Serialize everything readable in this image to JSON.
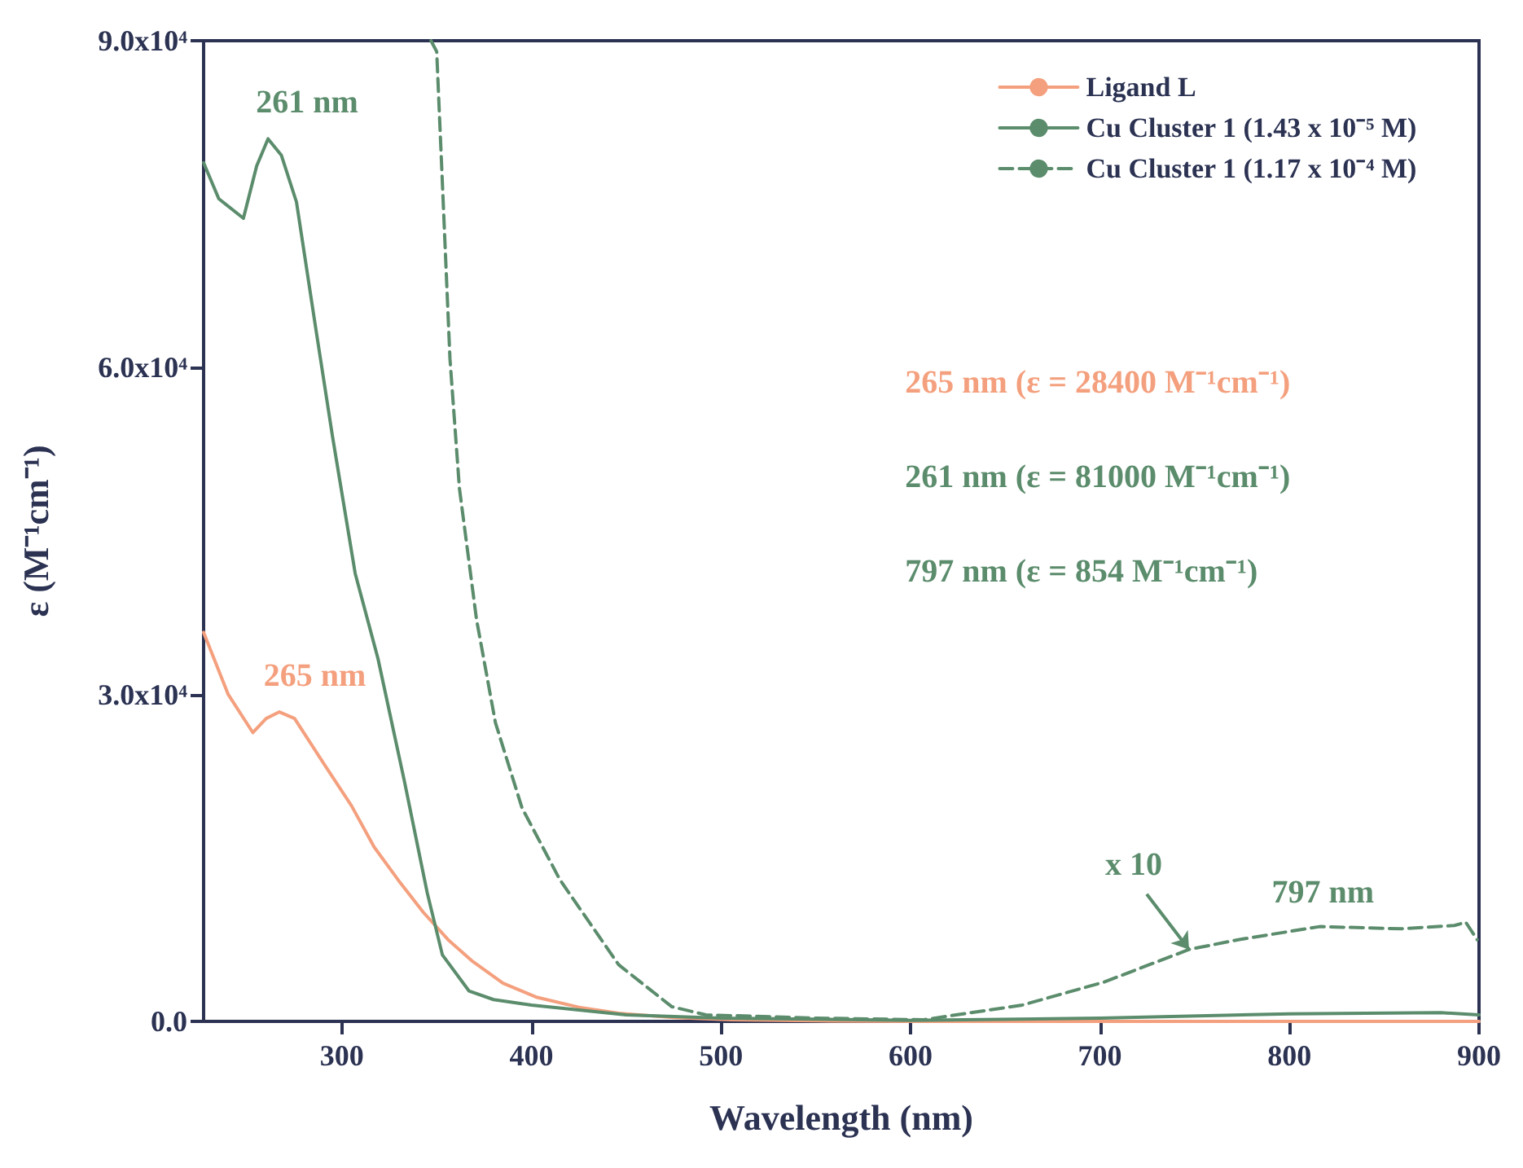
{
  "chart_data": {
    "type": "line",
    "xlabel": "Wavelength (nm)",
    "ylabel": "ε (M⁻¹cm⁻¹)",
    "xlim": [
      227,
      900
    ],
    "xticks": [
      300,
      400,
      500,
      600,
      700,
      800,
      900
    ],
    "ylim": [
      0,
      90000
    ],
    "yticks": [
      {
        "value": 0,
        "label": "0.0"
      },
      {
        "value": 30000,
        "label": "3.0x10⁴"
      },
      {
        "value": 60000,
        "label": "6.0x10⁴"
      },
      {
        "value": 90000,
        "label": "9.0x10⁴"
      }
    ],
    "legend": "top right",
    "grid": false,
    "marker": "none",
    "series": [
      {
        "name": "Ligand L",
        "color": "#f4a07e",
        "line_style": "solid",
        "x": [
          227,
          240,
          253,
          260,
          267,
          275,
          291,
          305,
          317,
          330,
          343,
          356,
          369,
          385,
          403,
          425,
          446,
          475,
          506,
          550,
          600,
          700,
          800,
          900
        ],
        "values": [
          35700,
          30000,
          26500,
          27800,
          28400,
          27800,
          23500,
          19800,
          16000,
          12900,
          10000,
          7500,
          5500,
          3500,
          2200,
          1300,
          750,
          350,
          150,
          50,
          0,
          0,
          0,
          0
        ]
      },
      {
        "name": "Cu Cluster 1 (1.43 x 10⁻⁵ M)",
        "color": "#5b8c6c",
        "line_style": "solid",
        "x": [
          227,
          235,
          248,
          255,
          261,
          268,
          276,
          286,
          295,
          307,
          319,
          333,
          345,
          353,
          367,
          380,
          400,
          450,
          500,
          600,
          700,
          800,
          880,
          900
        ],
        "values": [
          78800,
          75500,
          73700,
          78500,
          81000,
          79500,
          75200,
          63800,
          53700,
          41100,
          33300,
          22000,
          11800,
          6100,
          2800,
          2000,
          1500,
          600,
          300,
          100,
          300,
          700,
          800,
          600
        ]
      },
      {
        "name": "Cu Cluster 1 (1.17 x 10⁻⁴ M)",
        "color": "#5b8c6c",
        "line_style": "dashed",
        "x": [
          347,
          350,
          357,
          362,
          371,
          381,
          395,
          415,
          446,
          474,
          492,
          550,
          607,
          659,
          702,
          747,
          773,
          816,
          859,
          887,
          893,
          899
        ],
        "values": [
          90000,
          89000,
          60800,
          48900,
          36900,
          27400,
          19600,
          13000,
          5200,
          1350,
          600,
          300,
          150,
          1500,
          3600,
          6600,
          7500,
          8700,
          8500,
          8800,
          9100,
          7500
        ]
      }
    ],
    "annotations": [
      {
        "text": "261 nm",
        "x": 261,
        "y": 81000
      },
      {
        "text": "265 nm",
        "x": 265,
        "y": 28400
      },
      {
        "text": "x 10",
        "x": 747,
        "y": 6600
      },
      {
        "text": "797 nm",
        "x": 797,
        "y": 8540
      },
      "265 nm (ε = 28400 M⁻¹cm⁻¹)",
      "261 nm (ε = 81000 M⁻¹cm⁻¹)",
      "797 nm (ε = 854 M⁻¹cm⁻¹)"
    ]
  }
}
